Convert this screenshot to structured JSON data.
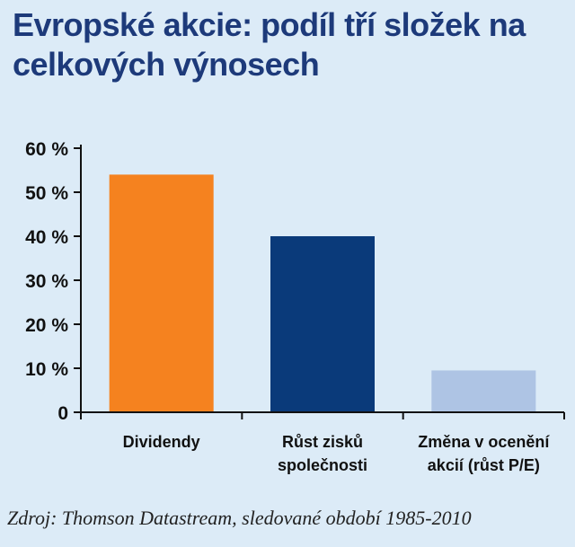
{
  "chart_data": {
    "type": "bar",
    "title": "Evropské akcie: podíl tří složek na celkových výnosech",
    "categories": [
      [
        "Dividendy"
      ],
      [
        "Růst zisků",
        "společnosti"
      ],
      [
        "Změna v ocenění",
        "akcií (růst P/E)"
      ]
    ],
    "values": [
      54,
      40,
      9.5
    ],
    "colors": [
      "#f5821f",
      "#0a3a7a",
      "#aec4e4"
    ],
    "yticks": [
      "0",
      "10 %",
      "20 %",
      "30 %",
      "40 %",
      "50 %",
      "60 %"
    ],
    "ylim": [
      0,
      60
    ],
    "grid": false,
    "legend": "none",
    "source": "Zdroj: Thomson Datastream, sledované období 1985-2010"
  }
}
